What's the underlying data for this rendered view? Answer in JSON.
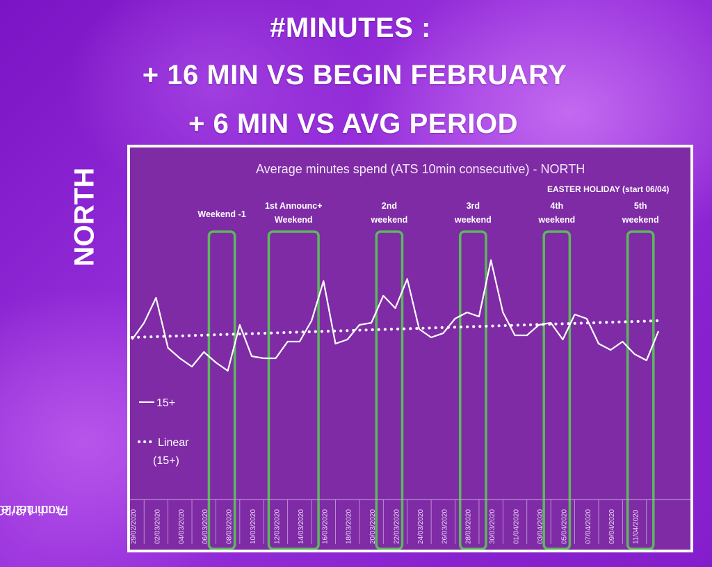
{
  "headline": {
    "line1": "#MINUTES :",
    "line2": "+ 16 MIN VS BEGIN FEBRUARY",
    "line3": "+ 6 MIN VS AVG PERIOD"
  },
  "region_label": "NORTH",
  "source_note": [
    "From 1/2/20",
    "Audimetrie"
  ],
  "colors": {
    "frame": "#ffffff",
    "plot_bg": "#7f2ba6",
    "highlight": "#5cb85c",
    "line": "#ffffff"
  },
  "chart_data": {
    "type": "line",
    "title": "Average minutes spend (ATS 10min consecutive) -  NORTH",
    "x_start": "29/02/2020",
    "tick_labels": [
      "29/02/2020",
      "02/03/2020",
      "04/03/2020",
      "06/03/2020",
      "08/03/2020",
      "10/03/2020",
      "12/03/2020",
      "14/03/2020",
      "16/03/2020",
      "18/03/2020",
      "20/03/2020",
      "22/03/2020",
      "24/03/2020",
      "26/03/2020",
      "28/03/2020",
      "30/03/2020",
      "01/04/2020",
      "03/04/2020",
      "05/04/2020",
      "07/04/2020",
      "09/04/2020",
      "11/04/2020"
    ],
    "y_axis_visible": false,
    "gridlines": false,
    "series": [
      {
        "name": "15+",
        "style": "solid",
        "values": [
          168,
          176,
          188,
          164,
          159,
          155,
          162,
          157,
          153,
          175,
          160,
          159,
          159,
          167,
          167,
          177,
          196,
          166,
          168,
          175,
          176,
          189,
          183,
          197,
          173,
          169,
          171,
          178,
          181,
          179,
          206,
          181,
          170,
          170,
          175,
          176,
          168,
          180,
          178,
          166,
          163,
          167,
          161,
          158,
          172
        ]
      },
      {
        "name": "Linear\n(15+)",
        "legend_lines": [
          "Linear",
          "(15+)"
        ],
        "style": "dotted",
        "trend": "linear",
        "start": 169,
        "end": 177
      }
    ],
    "annotations": [
      {
        "lines": [
          "Weekend -1"
        ],
        "start": "07/03/2020",
        "end": "08/03/2020"
      },
      {
        "lines": [
          "1st Announc+",
          "Weekend"
        ],
        "start": "12/03/2020",
        "end": "15/03/2020"
      },
      {
        "lines": [
          "2nd",
          "weekend"
        ],
        "start": "21/03/2020",
        "end": "22/03/2020"
      },
      {
        "lines": [
          "3rd",
          "weekend"
        ],
        "start": "28/03/2020",
        "end": "29/03/2020"
      },
      {
        "lines": [
          "4th",
          "weekend"
        ],
        "start": "04/04/2020",
        "end": "05/04/2020"
      },
      {
        "lines": [
          "5th",
          "weekend"
        ],
        "start": "11/04/2020",
        "end": "12/04/2020"
      }
    ],
    "note": "EASTER HOLIDAY (start 06/04)",
    "legend_position": "left"
  }
}
